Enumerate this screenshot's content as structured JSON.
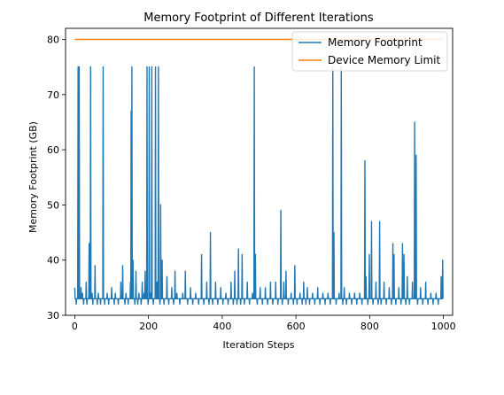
{
  "chart_data": {
    "type": "line",
    "title": "Memory Footprint of Different Iterations",
    "xlabel": "Iteration Steps",
    "ylabel": "Memory Footprint (GB)",
    "xlim": [
      -25,
      1025
    ],
    "ylim": [
      30,
      82
    ],
    "xticks": [
      0,
      200,
      400,
      600,
      800,
      1000
    ],
    "yticks": [
      30,
      40,
      50,
      60,
      70,
      80
    ],
    "xtick_labels": [
      "0",
      "200",
      "400",
      "600",
      "800",
      "1000"
    ],
    "ytick_labels": [
      "30",
      "40",
      "50",
      "60",
      "70",
      "80"
    ],
    "legend_position": "top-right",
    "colors": {
      "memory": "#1f77b4",
      "limit": "#ff7f0e"
    },
    "series": [
      {
        "name": "Memory Footprint",
        "baseline": 33,
        "values_sparse": [
          [
            0,
            35
          ],
          [
            2,
            33
          ],
          [
            4,
            32
          ],
          [
            7,
            33
          ],
          [
            9,
            75
          ],
          [
            10,
            33
          ],
          [
            12,
            75
          ],
          [
            14,
            33
          ],
          [
            17,
            35
          ],
          [
            19,
            33
          ],
          [
            21,
            34
          ],
          [
            24,
            32
          ],
          [
            27,
            33
          ],
          [
            31,
            36
          ],
          [
            33,
            32
          ],
          [
            36,
            33
          ],
          [
            39,
            43
          ],
          [
            40,
            33
          ],
          [
            43,
            75
          ],
          [
            44,
            33
          ],
          [
            47,
            34
          ],
          [
            49,
            32
          ],
          [
            52,
            33
          ],
          [
            55,
            39
          ],
          [
            57,
            33
          ],
          [
            61,
            32
          ],
          [
            64,
            34
          ],
          [
            67,
            33
          ],
          [
            70,
            32
          ],
          [
            74,
            33
          ],
          [
            77,
            75
          ],
          [
            78,
            33
          ],
          [
            81,
            32
          ],
          [
            84,
            33
          ],
          [
            88,
            34
          ],
          [
            92,
            32
          ],
          [
            96,
            33
          ],
          [
            100,
            35
          ],
          [
            103,
            33
          ],
          [
            107,
            32
          ],
          [
            110,
            34
          ],
          [
            114,
            33
          ],
          [
            118,
            32
          ],
          [
            121,
            33
          ],
          [
            125,
            36
          ],
          [
            127,
            33
          ],
          [
            130,
            39
          ],
          [
            132,
            33
          ],
          [
            136,
            32
          ],
          [
            139,
            34
          ],
          [
            142,
            33
          ],
          [
            145,
            32
          ],
          [
            148,
            33
          ],
          [
            151,
            36
          ],
          [
            153,
            67
          ],
          [
            154,
            33
          ],
          [
            155,
            75
          ],
          [
            156,
            33
          ],
          [
            158,
            40
          ],
          [
            160,
            33
          ],
          [
            163,
            32
          ],
          [
            166,
            38
          ],
          [
            168,
            33
          ],
          [
            171,
            32
          ],
          [
            174,
            34
          ],
          [
            177,
            33
          ],
          [
            180,
            32
          ],
          [
            183,
            36
          ],
          [
            185,
            33
          ],
          [
            188,
            34
          ],
          [
            191,
            38
          ],
          [
            193,
            33
          ],
          [
            196,
            75
          ],
          [
            197,
            33
          ],
          [
            199,
            32
          ],
          [
            202,
            75
          ],
          [
            203,
            33
          ],
          [
            206,
            34
          ],
          [
            209,
            75
          ],
          [
            210,
            33
          ],
          [
            213,
            32
          ],
          [
            216,
            33
          ],
          [
            219,
            75
          ],
          [
            220,
            33
          ],
          [
            223,
            36
          ],
          [
            225,
            33
          ],
          [
            227,
            75
          ],
          [
            228,
            33
          ],
          [
            231,
            32
          ],
          [
            233,
            50
          ],
          [
            234,
            33
          ],
          [
            237,
            40
          ],
          [
            239,
            33
          ],
          [
            242,
            32
          ],
          [
            246,
            33
          ],
          [
            250,
            37
          ],
          [
            252,
            33
          ],
          [
            255,
            32
          ],
          [
            259,
            33
          ],
          [
            263,
            35
          ],
          [
            265,
            33
          ],
          [
            268,
            32
          ],
          [
            272,
            38
          ],
          [
            274,
            33
          ],
          [
            277,
            34
          ],
          [
            281,
            33
          ],
          [
            285,
            32
          ],
          [
            289,
            33
          ],
          [
            293,
            34
          ],
          [
            297,
            33
          ],
          [
            300,
            38
          ],
          [
            302,
            33
          ],
          [
            306,
            32
          ],
          [
            310,
            33
          ],
          [
            314,
            35
          ],
          [
            316,
            33
          ],
          [
            320,
            32
          ],
          [
            324,
            33
          ],
          [
            328,
            34
          ],
          [
            332,
            33
          ],
          [
            336,
            32
          ],
          [
            340,
            33
          ],
          [
            344,
            41
          ],
          [
            346,
            33
          ],
          [
            350,
            32
          ],
          [
            354,
            33
          ],
          [
            358,
            36
          ],
          [
            360,
            33
          ],
          [
            364,
            32
          ],
          [
            368,
            45
          ],
          [
            370,
            33
          ],
          [
            374,
            32
          ],
          [
            378,
            33
          ],
          [
            382,
            36
          ],
          [
            384,
            33
          ],
          [
            388,
            32
          ],
          [
            392,
            33
          ],
          [
            396,
            35
          ],
          [
            398,
            33
          ],
          [
            402,
            32
          ],
          [
            406,
            33
          ],
          [
            410,
            34
          ],
          [
            412,
            33
          ],
          [
            416,
            32
          ],
          [
            420,
            33
          ],
          [
            424,
            36
          ],
          [
            426,
            33
          ],
          [
            430,
            32
          ],
          [
            434,
            38
          ],
          [
            436,
            33
          ],
          [
            440,
            32
          ],
          [
            444,
            42
          ],
          [
            446,
            33
          ],
          [
            450,
            32
          ],
          [
            454,
            41
          ],
          [
            456,
            33
          ],
          [
            460,
            32
          ],
          [
            464,
            33
          ],
          [
            468,
            36
          ],
          [
            470,
            33
          ],
          [
            474,
            32
          ],
          [
            478,
            33
          ],
          [
            482,
            34
          ],
          [
            484,
            33
          ],
          [
            487,
            75
          ],
          [
            488,
            33
          ],
          [
            490,
            41
          ],
          [
            492,
            33
          ],
          [
            495,
            32
          ],
          [
            499,
            33
          ],
          [
            503,
            35
          ],
          [
            505,
            33
          ],
          [
            509,
            32
          ],
          [
            513,
            33
          ],
          [
            517,
            35
          ],
          [
            519,
            33
          ],
          [
            523,
            32
          ],
          [
            527,
            33
          ],
          [
            531,
            36
          ],
          [
            533,
            33
          ],
          [
            537,
            32
          ],
          [
            541,
            33
          ],
          [
            545,
            36
          ],
          [
            547,
            33
          ],
          [
            551,
            32
          ],
          [
            555,
            33
          ],
          [
            559,
            49
          ],
          [
            560,
            33
          ],
          [
            563,
            32
          ],
          [
            567,
            36
          ],
          [
            569,
            33
          ],
          [
            573,
            38
          ],
          [
            575,
            33
          ],
          [
            579,
            32
          ],
          [
            583,
            33
          ],
          [
            587,
            34
          ],
          [
            589,
            33
          ],
          [
            593,
            32
          ],
          [
            597,
            39
          ],
          [
            599,
            33
          ],
          [
            603,
            32
          ],
          [
            607,
            33
          ],
          [
            611,
            34
          ],
          [
            613,
            33
          ],
          [
            617,
            32
          ],
          [
            621,
            36
          ],
          [
            623,
            33
          ],
          [
            627,
            32
          ],
          [
            631,
            35
          ],
          [
            633,
            33
          ],
          [
            637,
            32
          ],
          [
            641,
            33
          ],
          [
            645,
            34
          ],
          [
            647,
            33
          ],
          [
            651,
            32
          ],
          [
            655,
            33
          ],
          [
            659,
            35
          ],
          [
            661,
            33
          ],
          [
            665,
            32
          ],
          [
            669,
            33
          ],
          [
            673,
            34
          ],
          [
            675,
            33
          ],
          [
            679,
            32
          ],
          [
            683,
            33
          ],
          [
            687,
            34
          ],
          [
            689,
            33
          ],
          [
            693,
            32
          ],
          [
            697,
            33
          ],
          [
            700,
            75
          ],
          [
            701,
            33
          ],
          [
            703,
            45
          ],
          [
            705,
            33
          ],
          [
            709,
            32
          ],
          [
            713,
            33
          ],
          [
            717,
            34
          ],
          [
            719,
            33
          ],
          [
            723,
            75
          ],
          [
            724,
            33
          ],
          [
            727,
            32
          ],
          [
            731,
            35
          ],
          [
            733,
            33
          ],
          [
            737,
            32
          ],
          [
            741,
            33
          ],
          [
            745,
            34
          ],
          [
            747,
            33
          ],
          [
            751,
            32
          ],
          [
            755,
            33
          ],
          [
            759,
            34
          ],
          [
            761,
            33
          ],
          [
            765,
            32
          ],
          [
            769,
            33
          ],
          [
            773,
            34
          ],
          [
            775,
            33
          ],
          [
            779,
            32
          ],
          [
            783,
            33
          ],
          [
            787,
            58
          ],
          [
            788,
            33
          ],
          [
            790,
            37
          ],
          [
            792,
            33
          ],
          [
            795,
            32
          ],
          [
            799,
            41
          ],
          [
            801,
            33
          ],
          [
            805,
            47
          ],
          [
            806,
            33
          ],
          [
            809,
            32
          ],
          [
            813,
            33
          ],
          [
            817,
            36
          ],
          [
            819,
            33
          ],
          [
            823,
            32
          ],
          [
            827,
            47
          ],
          [
            828,
            33
          ],
          [
            831,
            32
          ],
          [
            835,
            33
          ],
          [
            839,
            36
          ],
          [
            841,
            33
          ],
          [
            845,
            32
          ],
          [
            849,
            33
          ],
          [
            853,
            35
          ],
          [
            855,
            33
          ],
          [
            859,
            32
          ],
          [
            863,
            43
          ],
          [
            864,
            33
          ],
          [
            866,
            41
          ],
          [
            868,
            33
          ],
          [
            871,
            32
          ],
          [
            875,
            33
          ],
          [
            879,
            35
          ],
          [
            881,
            33
          ],
          [
            885,
            32
          ],
          [
            889,
            43
          ],
          [
            890,
            33
          ],
          [
            893,
            41
          ],
          [
            895,
            33
          ],
          [
            898,
            32
          ],
          [
            902,
            37
          ],
          [
            904,
            33
          ],
          [
            908,
            32
          ],
          [
            912,
            33
          ],
          [
            916,
            36
          ],
          [
            918,
            33
          ],
          [
            922,
            65
          ],
          [
            923,
            33
          ],
          [
            926,
            59
          ],
          [
            927,
            33
          ],
          [
            930,
            32
          ],
          [
            934,
            33
          ],
          [
            938,
            35
          ],
          [
            940,
            33
          ],
          [
            944,
            32
          ],
          [
            948,
            33
          ],
          [
            952,
            36
          ],
          [
            954,
            33
          ],
          [
            958,
            32
          ],
          [
            962,
            33
          ],
          [
            966,
            34
          ],
          [
            968,
            33
          ],
          [
            972,
            32
          ],
          [
            976,
            33
          ],
          [
            980,
            34
          ],
          [
            982,
            33
          ],
          [
            986,
            32
          ],
          [
            990,
            33
          ],
          [
            994,
            37
          ],
          [
            996,
            33
          ],
          [
            998,
            40
          ],
          [
            999,
            33
          ]
        ]
      },
      {
        "name": "Device Memory Limit",
        "x": [
          0,
          1000
        ],
        "values": [
          80,
          80
        ]
      }
    ]
  }
}
